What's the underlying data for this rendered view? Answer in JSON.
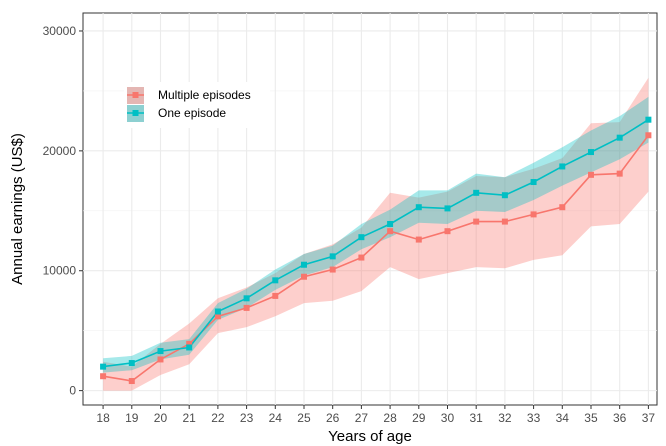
{
  "chart_data": {
    "type": "line",
    "xlabel": "Years of age",
    "ylabel": "Annual earnings (US$)",
    "x": [
      18,
      19,
      20,
      21,
      22,
      23,
      24,
      25,
      26,
      27,
      28,
      29,
      30,
      31,
      32,
      33,
      34,
      35,
      36,
      37
    ],
    "xlim": [
      17.3,
      37.3
    ],
    "ylim": [
      -1200,
      31500
    ],
    "yticks": [
      0,
      10000,
      20000,
      30000
    ],
    "grid": true,
    "legend_position": "top-left",
    "series": [
      {
        "name": "Multiple episodes",
        "color": "#F8766D",
        "values": [
          1200,
          800,
          2600,
          3900,
          6200,
          6900,
          7900,
          9500,
          10100,
          11100,
          13300,
          12600,
          13300,
          14100,
          14100,
          14700,
          15300,
          18000,
          18100,
          21300
        ],
        "lower": [
          0,
          0,
          1300,
          2200,
          4800,
          5300,
          6200,
          7300,
          7500,
          8300,
          10300,
          9300,
          9800,
          10300,
          10200,
          10900,
          11300,
          13700,
          13900,
          16600
        ],
        "upper": [
          2400,
          2000,
          3900,
          5600,
          7700,
          8600,
          9800,
          11400,
          12200,
          13600,
          16500,
          16100,
          16600,
          17900,
          17800,
          18500,
          19400,
          22300,
          22400,
          26100
        ]
      },
      {
        "name": "One episode",
        "color": "#00BFC4",
        "values": [
          2000,
          2300,
          3300,
          3600,
          6600,
          7700,
          9200,
          10500,
          11200,
          12800,
          13900,
          15300,
          15200,
          16500,
          16300,
          17400,
          18700,
          19900,
          21100,
          22600
        ],
        "lower": [
          1500,
          1700,
          2600,
          3000,
          5900,
          6900,
          8400,
          9600,
          10300,
          11800,
          12800,
          14000,
          13900,
          15000,
          14900,
          15900,
          17100,
          18200,
          19300,
          20700
        ],
        "upper": [
          2700,
          2900,
          4000,
          4300,
          7300,
          8500,
          10100,
          11400,
          12100,
          13900,
          15100,
          16700,
          16700,
          18100,
          17800,
          19000,
          20300,
          21700,
          22900,
          24500
        ]
      }
    ]
  }
}
